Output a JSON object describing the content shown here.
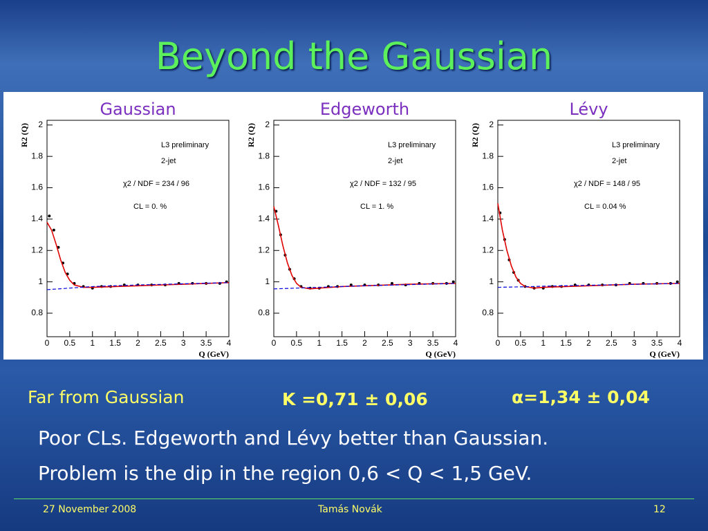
{
  "slide": {
    "title": "Beyond the Gaussian",
    "note_left": "Far from Gaussian",
    "note_k": "K =0,71 ± 0,06",
    "note_alpha": "α=1,34 ± 0,04",
    "line1": "Poor CLs. Edgeworth and Lévy better than Gaussian.",
    "line2": "Problem is the dip in the region  0,6 < Q < 1,5  GeV.",
    "footer_date": "27 November 2008",
    "footer_author": "Tamás Novák",
    "footer_page": "12"
  },
  "chart_data": [
    {
      "type": "scatter",
      "title": "Gaussian",
      "y_label": "R2 (Q)",
      "x_label": "Q (GeV)",
      "annotations": [
        "L3 preliminary",
        "2-jet",
        "χ2 / NDF = 234 / 96",
        "CL = 0. %"
      ],
      "xlim": [
        0,
        4
      ],
      "ylim": [
        0.65,
        2.03
      ],
      "xticks": [
        0,
        0.5,
        1,
        1.5,
        2,
        2.5,
        3,
        3.5,
        4
      ],
      "yticks": [
        0.8,
        1,
        1.2,
        1.4,
        1.6,
        1.8,
        2
      ],
      "series": [
        {
          "mode": "markers",
          "color": "#000000",
          "x": [
            0.05,
            0.15,
            0.25,
            0.35,
            0.45,
            0.6,
            0.8,
            1.0,
            1.2,
            1.4,
            1.7,
            2.0,
            2.3,
            2.6,
            2.9,
            3.2,
            3.5,
            3.8,
            3.95
          ],
          "values": [
            1.42,
            1.33,
            1.22,
            1.12,
            1.05,
            0.99,
            0.97,
            0.96,
            0.97,
            0.97,
            0.98,
            0.98,
            0.98,
            0.98,
            0.99,
            0.99,
            0.99,
            0.99,
            1.0
          ]
        },
        {
          "mode": "line",
          "color": "#e00000",
          "x": [
            0,
            0.1,
            0.2,
            0.3,
            0.4,
            0.5,
            0.6,
            0.8,
            1.0,
            1.5,
            2,
            3,
            4
          ],
          "values": [
            1.38,
            1.33,
            1.24,
            1.14,
            1.06,
            1.01,
            0.98,
            0.965,
            0.965,
            0.97,
            0.975,
            0.985,
            0.995
          ]
        },
        {
          "mode": "dashed",
          "color": "#0000e0",
          "x": [
            0,
            0.5,
            1,
            2,
            4
          ],
          "values": [
            0.95,
            0.96,
            0.97,
            0.98,
            0.995
          ]
        }
      ]
    },
    {
      "type": "scatter",
      "title": "Edgeworth",
      "y_label": "R2 (Q)",
      "x_label": "Q (GeV)",
      "annotations": [
        "L3 preliminary",
        "2-jet",
        "χ2 / NDF = 132 / 95",
        "CL = 1. %"
      ],
      "xlim": [
        0,
        4
      ],
      "ylim": [
        0.65,
        2.03
      ],
      "xticks": [
        0,
        0.5,
        1,
        1.5,
        2,
        2.5,
        3,
        3.5,
        4
      ],
      "yticks": [
        0.8,
        1,
        1.2,
        1.4,
        1.6,
        1.8,
        2
      ],
      "series": [
        {
          "mode": "markers",
          "color": "#000000",
          "x": [
            0.05,
            0.15,
            0.25,
            0.35,
            0.45,
            0.6,
            0.8,
            1.0,
            1.2,
            1.4,
            1.7,
            2.0,
            2.3,
            2.6,
            2.9,
            3.2,
            3.5,
            3.8,
            3.95
          ],
          "values": [
            1.45,
            1.3,
            1.17,
            1.08,
            1.02,
            0.97,
            0.96,
            0.96,
            0.97,
            0.97,
            0.98,
            0.98,
            0.98,
            0.99,
            0.98,
            0.99,
            0.99,
            0.99,
            1.0
          ]
        },
        {
          "mode": "line",
          "color": "#e00000",
          "x": [
            0,
            0.1,
            0.2,
            0.3,
            0.4,
            0.5,
            0.6,
            0.8,
            1.0,
            1.5,
            2,
            3,
            4
          ],
          "values": [
            1.48,
            1.36,
            1.23,
            1.12,
            1.04,
            0.99,
            0.965,
            0.955,
            0.96,
            0.97,
            0.975,
            0.985,
            0.99
          ]
        },
        {
          "mode": "dashed",
          "color": "#0000e0",
          "x": [
            0,
            0.5,
            1,
            2,
            4
          ],
          "values": [
            0.955,
            0.96,
            0.965,
            0.975,
            0.99
          ]
        }
      ]
    },
    {
      "type": "scatter",
      "title": "Lévy",
      "y_label": "R2 (Q)",
      "x_label": "Q (GeV)",
      "annotations": [
        "L3 preliminary",
        "2-jet",
        "χ2 / NDF = 148 / 95",
        "CL = 0.04 %"
      ],
      "xlim": [
        0,
        4
      ],
      "ylim": [
        0.65,
        2.03
      ],
      "xticks": [
        0,
        0.5,
        1,
        1.5,
        2,
        2.5,
        3,
        3.5,
        4
      ],
      "yticks": [
        0.8,
        1,
        1.2,
        1.4,
        1.6,
        1.8,
        2
      ],
      "series": [
        {
          "mode": "markers",
          "color": "#000000",
          "x": [
            0.05,
            0.15,
            0.25,
            0.35,
            0.45,
            0.6,
            0.8,
            1.0,
            1.2,
            1.4,
            1.7,
            2.0,
            2.3,
            2.6,
            2.9,
            3.2,
            3.5,
            3.8,
            3.95
          ],
          "values": [
            1.44,
            1.27,
            1.14,
            1.06,
            1.01,
            0.97,
            0.96,
            0.96,
            0.97,
            0.97,
            0.98,
            0.98,
            0.98,
            0.98,
            0.99,
            0.99,
            0.99,
            0.99,
            1.0
          ]
        },
        {
          "mode": "line",
          "color": "#e00000",
          "x": [
            0,
            0.1,
            0.2,
            0.3,
            0.4,
            0.5,
            0.6,
            0.8,
            1.0,
            1.5,
            2,
            3,
            4
          ],
          "values": [
            1.5,
            1.33,
            1.2,
            1.1,
            1.03,
            0.99,
            0.97,
            0.96,
            0.965,
            0.97,
            0.975,
            0.985,
            0.99
          ]
        },
        {
          "mode": "dashed",
          "color": "#0000e0",
          "x": [
            0,
            0.5,
            1,
            2,
            4
          ],
          "values": [
            0.965,
            0.968,
            0.972,
            0.978,
            0.99
          ]
        }
      ]
    }
  ]
}
